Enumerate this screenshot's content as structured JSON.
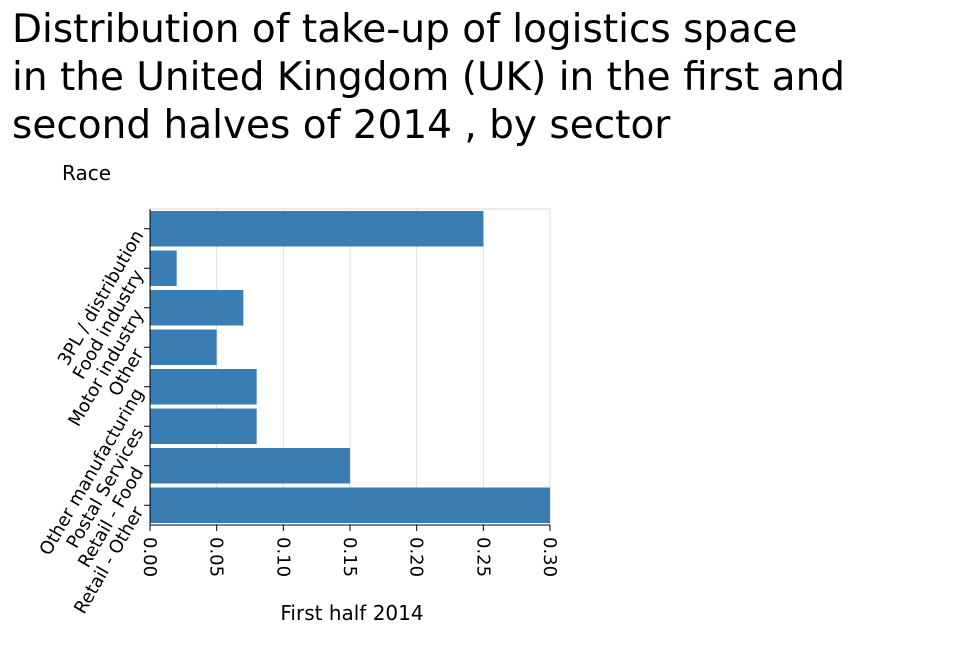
{
  "chart_data": {
    "type": "bar",
    "orientation": "horizontal",
    "title": "Distribution of take-up of logistics space\nin the United Kingdom (UK) in the first and\nsecond halves of 2014 , by sector",
    "ylabel": "Race",
    "xlabel": "First half 2014",
    "categories": [
      "3PL / distribution",
      "Food industry",
      "Motor industry",
      "Other",
      "Other manufacturing",
      "Postal Services",
      "Retail - Food",
      "Retail - Other"
    ],
    "values": [
      0.25,
      0.02,
      0.07,
      0.05,
      0.08,
      0.08,
      0.15,
      0.3
    ],
    "xlim": [
      0,
      0.3
    ],
    "xticks": [
      "0.00",
      "0.05",
      "0.10",
      "0.15",
      "0.20",
      "0.25",
      "0.30"
    ],
    "grid": true,
    "bar_color": "#3a7db3"
  }
}
